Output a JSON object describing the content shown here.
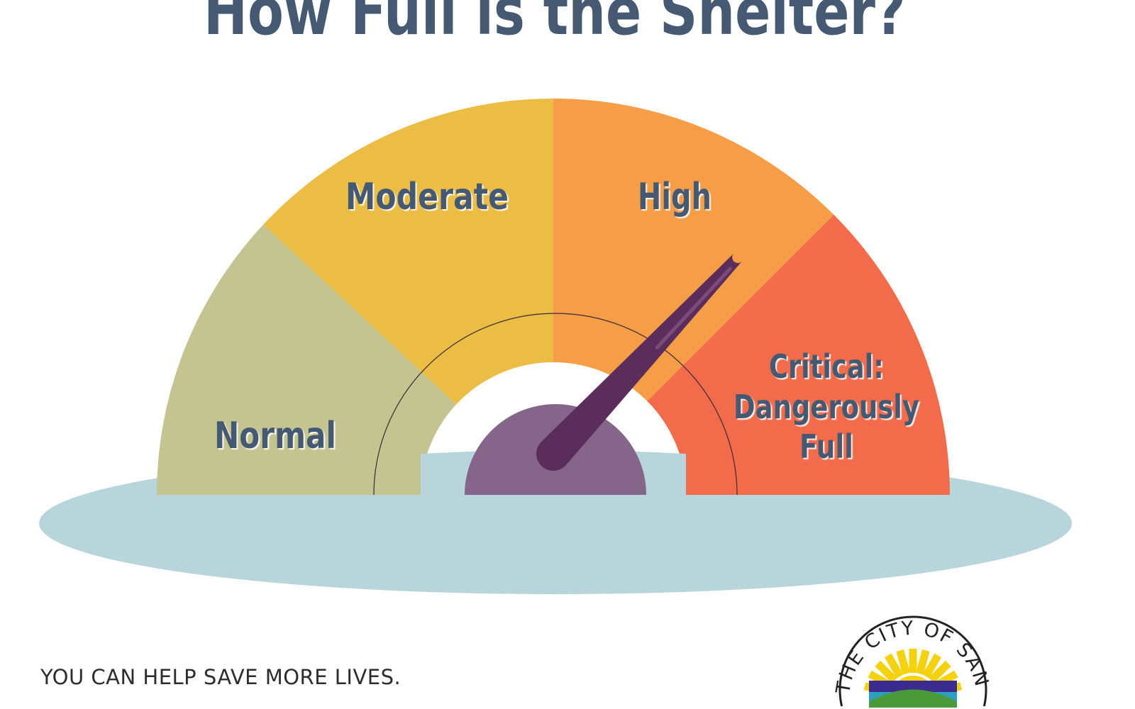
{
  "title": "How Full is the Shelter?",
  "gauge": {
    "segments": [
      {
        "label": "Normal",
        "color": "#c3c48f"
      },
      {
        "label": "Moderate",
        "color": "#ebbd45"
      },
      {
        "label": "High",
        "color": "#f59e47"
      },
      {
        "label_lines": [
          "Critical:",
          "Dangerously",
          "Full"
        ],
        "color": "#f26c4b"
      }
    ],
    "needle_level": 0.74,
    "indicated_level": "High",
    "needle_color": "#5b2d5a",
    "hub_color": "#85658a",
    "base_color": "#b9d5dc",
    "text_color": "#455a72"
  },
  "footer_text": "YOU CAN HELP SAVE MORE LIVES.",
  "logo": {
    "text": "THE CITY OF SAN ANGELO"
  }
}
